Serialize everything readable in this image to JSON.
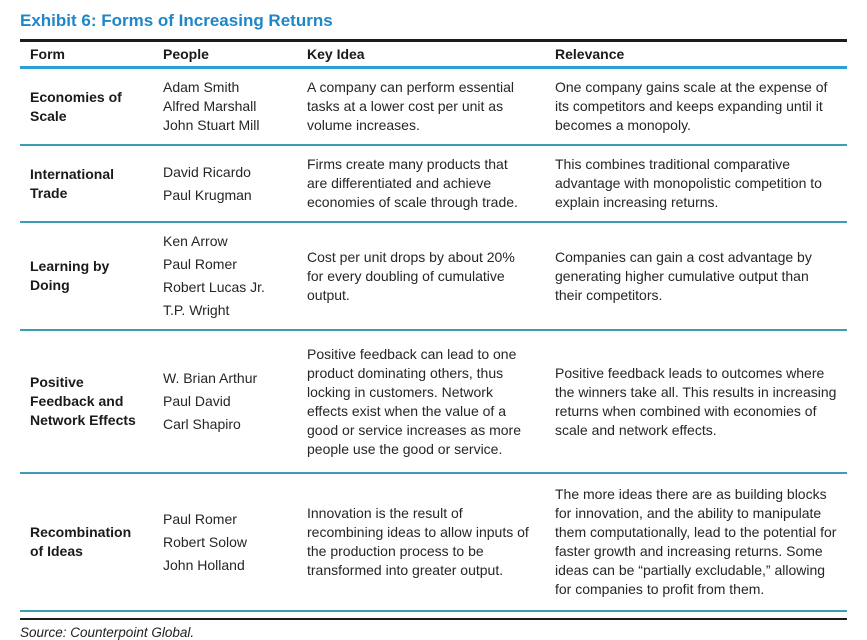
{
  "title": "Exhibit 6: Forms of Increasing Returns",
  "source_note": "Source: Counterpoint Global.",
  "colors": {
    "title_blue": "#1d87c9",
    "header_rule_blue": "#2aa1d2",
    "row_separator_teal": "#3f9cb2",
    "dark_rule": "#1c1c1c"
  },
  "table": {
    "columns": [
      "Form",
      "People",
      "Key Idea",
      "Relevance"
    ],
    "rows": [
      {
        "form": "Economies of Scale",
        "people": [
          "Adam Smith",
          "Alfred Marshall",
          "John Stuart Mill"
        ],
        "key_idea": "A company can perform essential tasks at a lower cost per unit as volume increases.",
        "relevance": "One company gains scale at the expense of its competitors and keeps expanding until it becomes a monopoly."
      },
      {
        "form": "International Trade",
        "people": [
          "David Ricardo",
          "Paul Krugman"
        ],
        "key_idea": "Firms create many products that are differentiated and achieve economies of scale through trade.",
        "relevance": "This combines traditional comparative advantage with monopolistic competition to explain increasing returns."
      },
      {
        "form": "Learning by Doing",
        "people": [
          "Ken Arrow",
          "Paul Romer",
          "Robert Lucas Jr.",
          "T.P. Wright"
        ],
        "key_idea": "Cost per unit drops by about 20% for every doubling of cumulative output.",
        "relevance": "Companies can gain a cost advantage by generating higher cumulative output than their competitors."
      },
      {
        "form": "Positive Feedback and Network Effects",
        "people": [
          "W. Brian Arthur",
          "Paul David",
          "Carl Shapiro"
        ],
        "key_idea": "Positive feedback can lead to one product dominating others, thus locking in customers. Network effects exist when the value of a good or service increases as more people use the good or service.",
        "relevance": "Positive feedback leads to outcomes where the winners take all. This results in increasing returns when combined with economies of scale and network effects."
      },
      {
        "form": "Recombination of Ideas",
        "people": [
          "Paul Romer",
          "Robert Solow",
          "John Holland"
        ],
        "key_idea": "Innovation is the result of recombining ideas to allow inputs of the production process to be transformed into greater output.",
        "relevance": "The more ideas there are as building blocks for innovation, and the ability to manipulate them computationally, lead to the potential for faster growth and increasing returns. Some ideas can be “partially excludable,” allowing for companies to profit from them."
      }
    ]
  }
}
